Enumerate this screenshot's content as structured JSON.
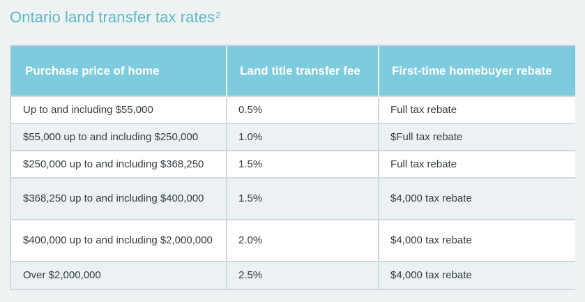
{
  "title": {
    "text": "Ontario land transfer tax rates",
    "footnote": "2"
  },
  "table": {
    "headers": [
      "Purchase price of home",
      "Land title transfer fee",
      "First-time homebuyer rebate"
    ],
    "rows": [
      [
        "Up to and including $55,000",
        "0.5%",
        "Full tax rebate"
      ],
      [
        "$55,000 up to and including $250,000",
        "1.0%",
        "$Full tax rebate"
      ],
      [
        "$250,000 up to and including $368,250",
        "1.5%",
        "Full tax rebate"
      ],
      [
        "$368,250 up to and including $400,000",
        "1.5%",
        "$4,000 tax rebate"
      ],
      [
        "$400,000 up to and including $2,000,000",
        "2.0%",
        "$4,000 tax rebate"
      ],
      [
        "Over $2,000,000",
        "2.5%",
        "$4,000 tax rebate"
      ]
    ]
  },
  "colors": {
    "title": "#5bb8c9",
    "header_background": "#7dcbdc",
    "header_text": "#ffffff",
    "row_alt_background": "#ecf2f4",
    "body_text": "#333b40"
  }
}
